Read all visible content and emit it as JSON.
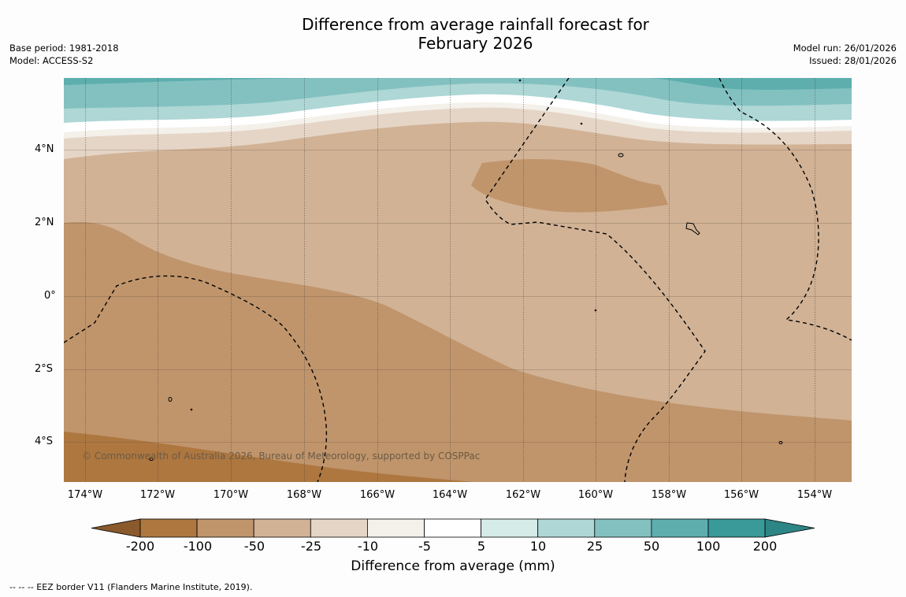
{
  "title": {
    "line1": "Difference from average rainfall forecast for",
    "line2": "February 2026"
  },
  "meta": {
    "base_period": "Base period: 1981-2018",
    "model": "Model: ACCESS-S2",
    "model_run": "Model run: 26/01/2026",
    "issued": "Issued: 28/01/2026"
  },
  "axes": {
    "latitudes": [
      {
        "label": "4°N",
        "value": 4
      },
      {
        "label": "2°N",
        "value": 2
      },
      {
        "label": "0°",
        "value": 0
      },
      {
        "label": "2°S",
        "value": -2
      },
      {
        "label": "4°S",
        "value": -4
      }
    ],
    "longitudes": [
      {
        "label": "174°W",
        "value": -174
      },
      {
        "label": "172°W",
        "value": -172
      },
      {
        "label": "170°W",
        "value": -170
      },
      {
        "label": "168°W",
        "value": -168
      },
      {
        "label": "166°W",
        "value": -166
      },
      {
        "label": "164°W",
        "value": -164
      },
      {
        "label": "162°W",
        "value": -162
      },
      {
        "label": "160°W",
        "value": -160
      },
      {
        "label": "158°W",
        "value": -158
      },
      {
        "label": "156°W",
        "value": -156
      },
      {
        "label": "154°W",
        "value": -154
      }
    ],
    "lon_range": [
      -174.6,
      -153.1
    ],
    "lat_range": [
      -5.0,
      6.0
    ]
  },
  "copyright": "© Commonwealth of Australia 2026, Bureau of Meteorology, supported by COSPPac",
  "colorbar": {
    "ticks": [
      "-200",
      "-100",
      "-50",
      "-25",
      "-10",
      "-5",
      "5",
      "10",
      "25",
      "50",
      "100",
      "200"
    ],
    "colors": [
      "#8a5a2c",
      "#ae7740",
      "#c0956c",
      "#d1b295",
      "#e5d5c6",
      "#f4f0ea",
      "#ffffff",
      "#d4ebe8",
      "#aed7d6",
      "#83c1c0",
      "#5eaeae",
      "#3a9999",
      "#2d8585"
    ],
    "label": "Difference from average (mm)"
  },
  "footnote": "--  --  -- EEZ border V11 (Flanders Marine Institute, 2019)."
}
